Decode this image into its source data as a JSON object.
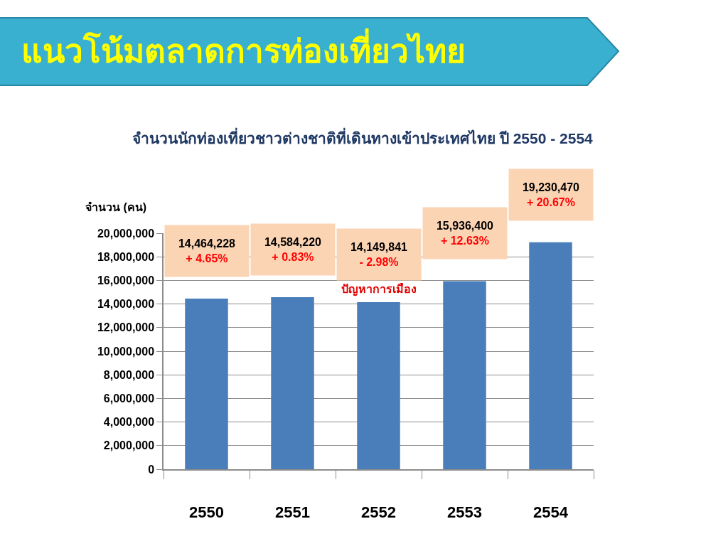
{
  "chart_data": {
    "type": "bar",
    "title": "แนวโน้มตลาดการท่องเที่ยวไทย",
    "subtitle": "จำนวนนักท่องเที่ยวชาวต่างชาติที่เดินทางเข้าประเทศไทย ปี 2550 - 2554",
    "ylabel": "จำนวน (คน)",
    "categories": [
      "2550",
      "2551",
      "2552",
      "2553",
      "2554"
    ],
    "values": [
      14464228,
      14584220,
      14149841,
      15936400,
      19230470
    ],
    "color": "#4a7ebb",
    "value_labels": [
      "14,464,228\n+ 4.65%",
      "14,584,220\n+ 0.83%",
      "14,149,841\n- 2.98%",
      "15,936,400\n+ 12.63%",
      "19,230,470\n+ 20.67%"
    ],
    "annotations": [
      {
        "text": "ปัญหาการเมือง",
        "x": "2552",
        "y": 14149841
      }
    ],
    "ylim": [
      0,
      20000000
    ],
    "yticks": [
      {
        "value": 0,
        "label": "0"
      },
      {
        "value": 2000000,
        "label": "2,000,000"
      },
      {
        "value": 4000000,
        "label": "4,000,000"
      },
      {
        "value": 6000000,
        "label": "6,000,000"
      },
      {
        "value": 8000000,
        "label": "8,000,000"
      },
      {
        "value": 10000000,
        "label": "10,000,000"
      },
      {
        "value": 12000000,
        "label": "12,000,000"
      },
      {
        "value": 14000000,
        "label": "14,000,000"
      },
      {
        "value": 16000000,
        "label": "16,000,000"
      },
      {
        "value": 18000000,
        "label": "18,000,000"
      },
      {
        "value": 20000000,
        "label": "20,000,000"
      }
    ],
    "grid": "y"
  }
}
